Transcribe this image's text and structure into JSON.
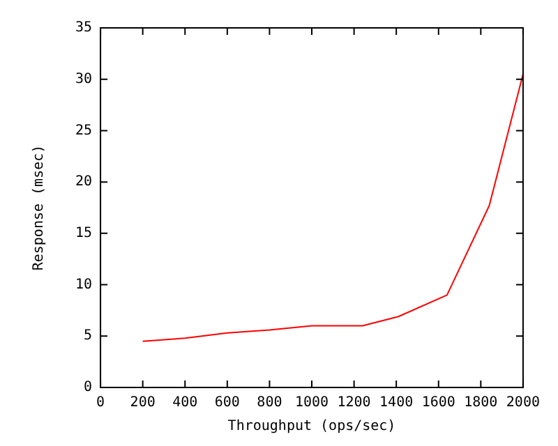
{
  "chart_data": {
    "type": "line",
    "xlabel": "Throughput (ops/sec)",
    "ylabel": "Response (msec)",
    "x": [
      200,
      400,
      600,
      800,
      1000,
      1240,
      1410,
      1640,
      1840,
      2000
    ],
    "series": [
      {
        "color": "#ff0000",
        "values": [
          4.5,
          4.8,
          5.3,
          5.6,
          6.0,
          6.0,
          6.9,
          9.0,
          17.7,
          30.5
        ]
      }
    ],
    "xlim": [
      0,
      2000
    ],
    "xticks": [
      0,
      200,
      400,
      600,
      800,
      1000,
      1200,
      1400,
      1600,
      1800,
      2000
    ],
    "ylim": [
      0,
      35
    ],
    "yticks": [
      0,
      5,
      10,
      15,
      20,
      25,
      30,
      35
    ],
    "grid": false,
    "legend": false,
    "marker": "none",
    "line_style": "solid"
  }
}
